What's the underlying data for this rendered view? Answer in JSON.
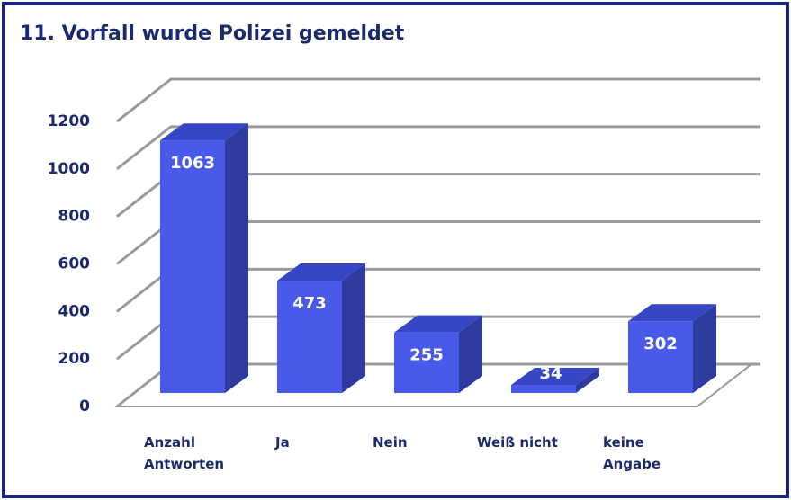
{
  "chart_data": {
    "type": "bar3d",
    "title": "11. Vorfall wurde Polizei gemeldet",
    "categories": [
      "Anzahl Antworten",
      "Ja",
      "Nein",
      "Weiß nicht",
      "keine Angabe"
    ],
    "values": [
      1063,
      473,
      255,
      34,
      302
    ],
    "color": "#4a5ae8",
    "ylim": [
      0,
      1200
    ],
    "yticks": [
      0,
      200,
      400,
      600,
      800,
      1000,
      1200
    ],
    "grid": true
  }
}
